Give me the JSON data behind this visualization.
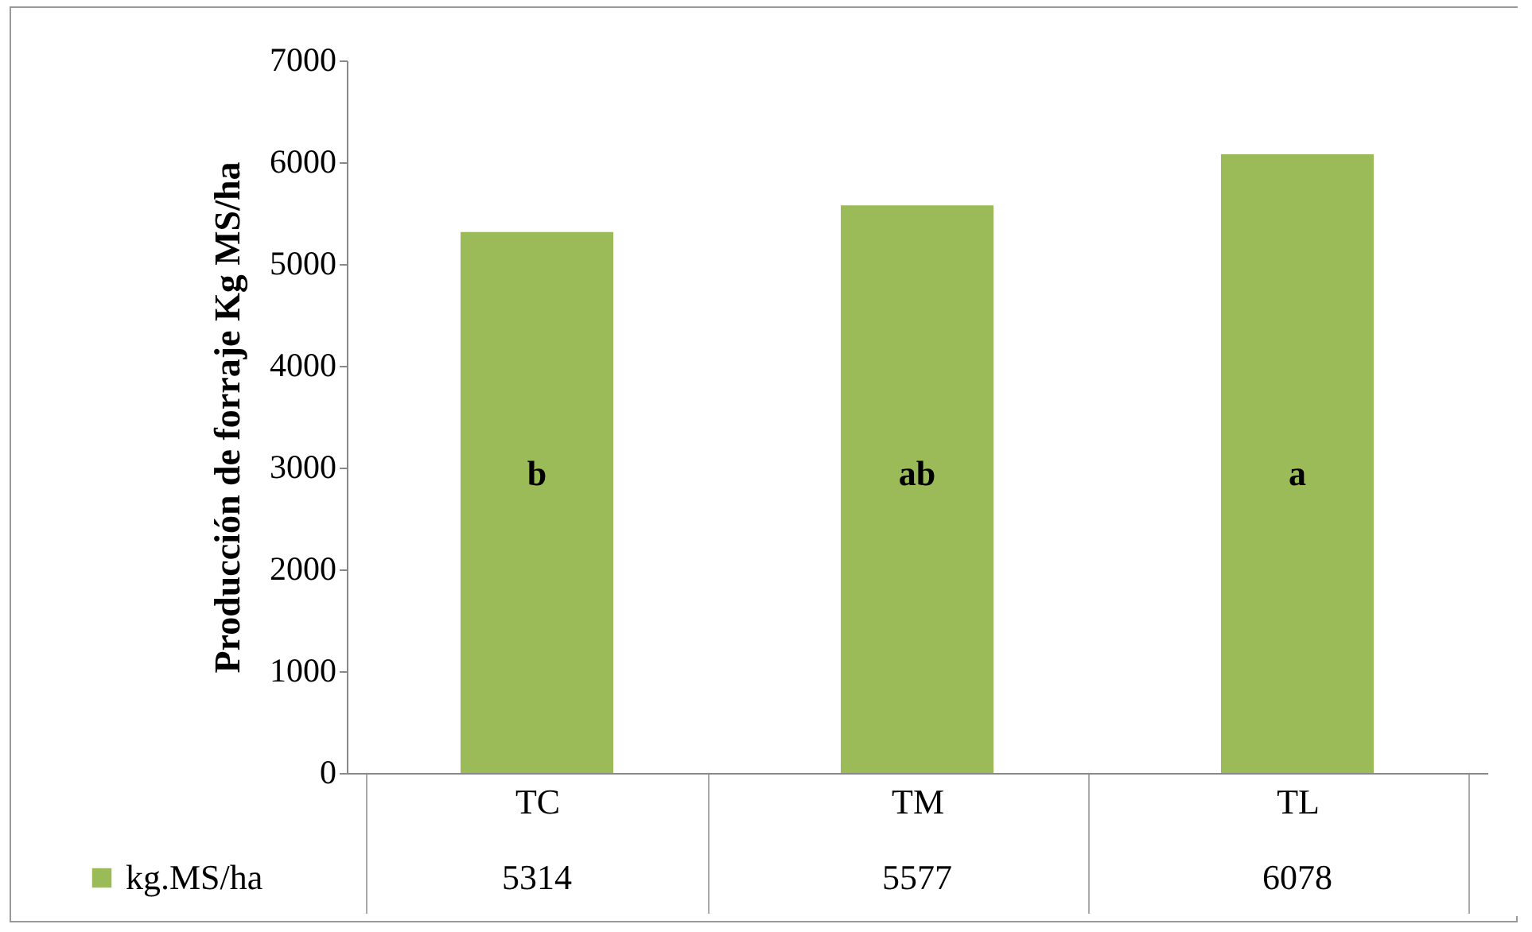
{
  "chart_data": {
    "type": "bar",
    "ylabel": "Producción de forraje  Kg MS/ha",
    "categories": [
      "TC",
      "TM",
      "TL"
    ],
    "series": [
      {
        "name": "kg.MS/ha",
        "color": "#9bbb59",
        "values": [
          5314,
          5577,
          6078
        ]
      }
    ],
    "ylim": [
      0,
      7000
    ],
    "yticks": [
      0,
      1000,
      2000,
      3000,
      4000,
      5000,
      6000,
      7000
    ],
    "grid": false,
    "legend": "bottom",
    "data_labels": true,
    "annotations": [
      "b",
      "ab",
      "a"
    ]
  }
}
